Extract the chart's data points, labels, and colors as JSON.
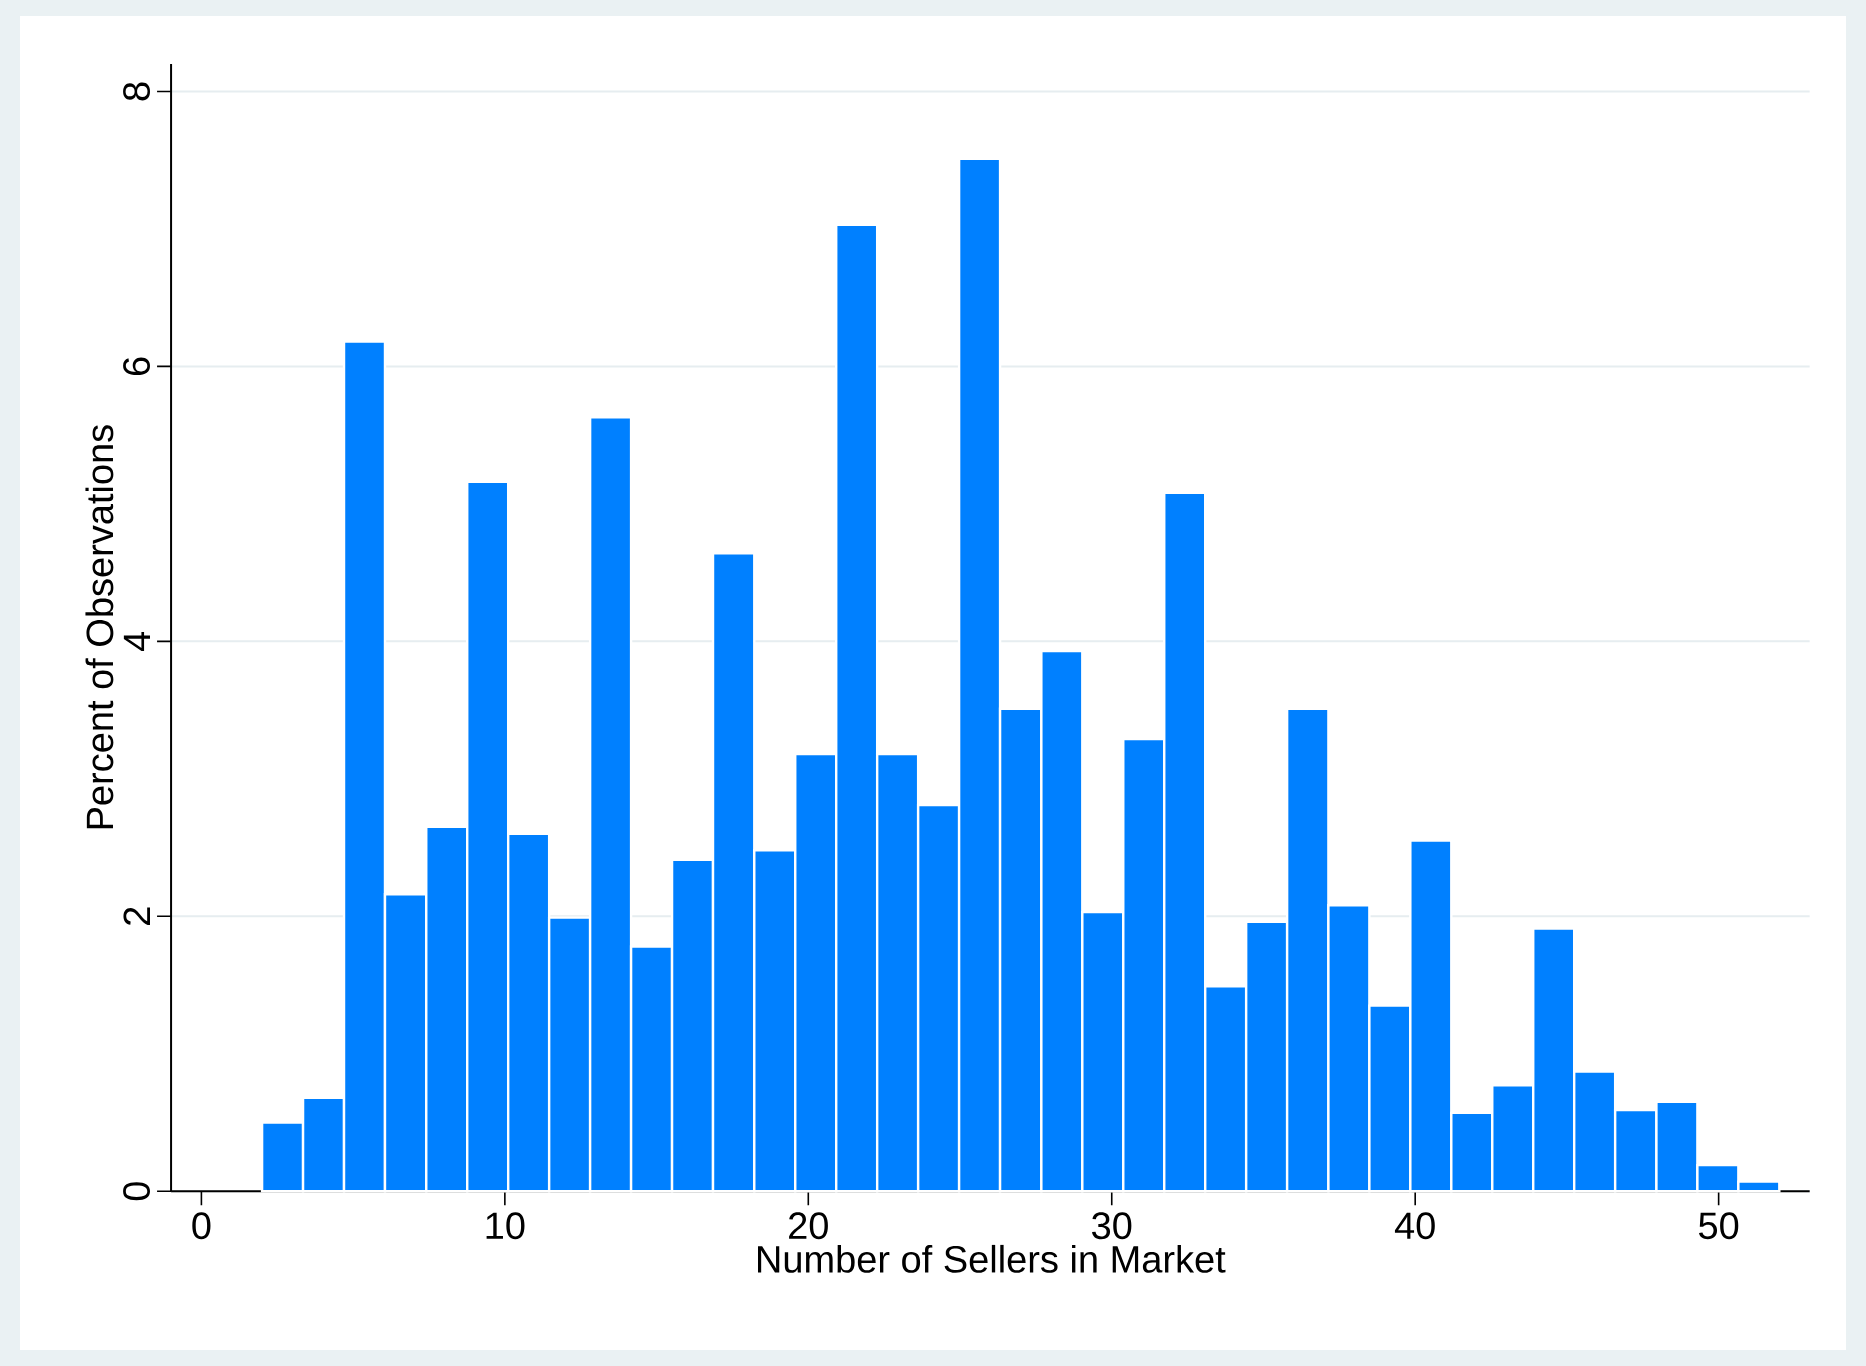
{
  "chart_data": {
    "type": "histogram",
    "xlabel": "Number of Sellers in Market",
    "ylabel": "Percent of Observations",
    "bins": [
      2,
      3.35,
      4.7,
      6.05,
      7.41,
      8.76,
      10.11,
      11.46,
      12.81,
      14.16,
      15.51,
      16.86,
      18.22,
      19.57,
      20.92,
      22.27,
      23.62,
      24.97,
      26.32,
      27.68,
      29.03,
      30.38,
      31.73,
      33.08,
      34.43,
      35.78,
      37.14,
      38.49,
      39.84,
      41.19,
      42.54,
      43.89,
      45.24,
      46.59,
      47.95,
      49.3,
      50.65,
      52
    ],
    "values": [
      0.5,
      0.68,
      6.18,
      2.16,
      2.65,
      5.16,
      2.6,
      1.99,
      5.63,
      1.78,
      2.41,
      4.64,
      2.48,
      3.18,
      7.03,
      3.18,
      2.81,
      7.51,
      3.51,
      3.93,
      2.03,
      3.29,
      5.08,
      1.49,
      1.96,
      3.51,
      2.08,
      1.35,
      2.55,
      0.57,
      0.77,
      1.91,
      0.87,
      0.59,
      0.65,
      0.19,
      0.07
    ],
    "color": "#0080ff",
    "xlim": [
      -1,
      53
    ],
    "ylim": [
      0,
      8.2
    ],
    "xticks": [
      0,
      10,
      20,
      30,
      40,
      50
    ],
    "yticks": [
      0,
      2,
      4,
      6,
      8
    ],
    "grid": "y"
  }
}
